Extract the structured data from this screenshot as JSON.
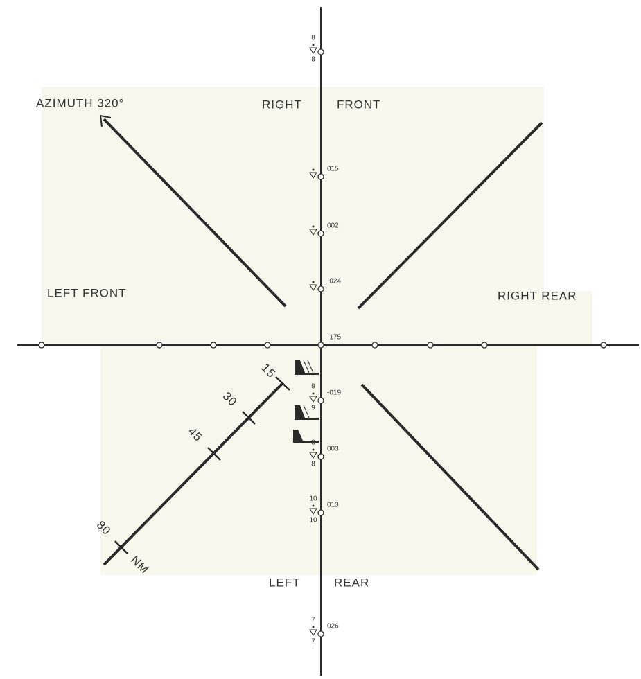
{
  "labels": {
    "azimuth": "AZIMUTH 320°",
    "right": "RIGHT",
    "front": "FRONT",
    "left_front": "LEFT FRONT",
    "right_rear": "RIGHT REAR",
    "left": "LEFT",
    "rear": "REAR"
  },
  "scale": {
    "ticks": [
      "15",
      "30",
      "45",
      "80"
    ],
    "unit": "NM"
  },
  "stations": [
    {
      "upper": "8",
      "lower": "8"
    },
    {
      "code": "015"
    },
    {
      "code": "002"
    },
    {
      "code": "-024"
    },
    {
      "code": "-175"
    },
    {
      "code": "-019",
      "upper": "9",
      "lower": "9"
    },
    {
      "code": "003",
      "upper": "8",
      "lower": "8"
    },
    {
      "code": "013",
      "upper": "10",
      "lower": "10"
    },
    {
      "code": "026",
      "upper": "7",
      "lower": "7"
    }
  ]
}
